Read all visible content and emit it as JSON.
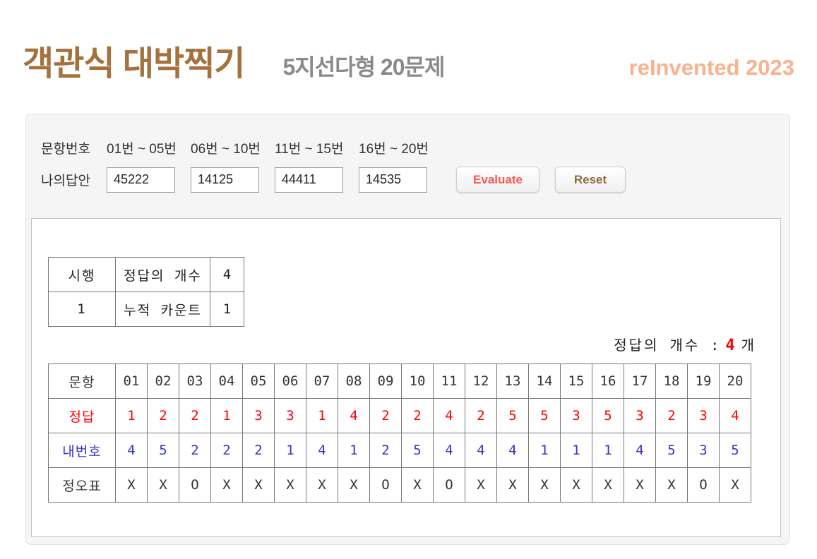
{
  "header": {
    "title": "객관식 대박찍기",
    "subtitle": "5지선다형 20문제",
    "brand": "reInvented 2023"
  },
  "form": {
    "question_row_label": "문항번호",
    "ranges": [
      "01번 ~ 05번",
      "06번 ~ 10번",
      "11번 ~ 15번",
      "16번 ~ 20번"
    ],
    "answer_row_label": "나의답안",
    "answers": [
      "45222",
      "14125",
      "44411",
      "14535"
    ],
    "evaluate_button": "Evaluate",
    "reset_button": "Reset"
  },
  "stats_table": {
    "rows": [
      [
        "시행",
        "정답의 개수",
        "4"
      ],
      [
        "1",
        "누적 카운트",
        "1"
      ]
    ]
  },
  "score_line": {
    "label": "정답의 개수 :",
    "count": "4",
    "unit": "개"
  },
  "results_table": {
    "row_headers": [
      "문항",
      "정답",
      "내번호",
      "정오표"
    ],
    "questions": [
      "01",
      "02",
      "03",
      "04",
      "05",
      "06",
      "07",
      "08",
      "09",
      "10",
      "11",
      "12",
      "13",
      "14",
      "15",
      "16",
      "17",
      "18",
      "19",
      "20"
    ],
    "correct_answers": [
      "1",
      "2",
      "2",
      "1",
      "3",
      "3",
      "1",
      "4",
      "2",
      "2",
      "4",
      "2",
      "5",
      "5",
      "3",
      "5",
      "3",
      "2",
      "3",
      "4"
    ],
    "my_answers": [
      "4",
      "5",
      "2",
      "2",
      "2",
      "1",
      "4",
      "1",
      "2",
      "5",
      "4",
      "4",
      "4",
      "1",
      "1",
      "1",
      "4",
      "5",
      "3",
      "5"
    ],
    "marks": [
      "X",
      "X",
      "O",
      "X",
      "X",
      "X",
      "X",
      "X",
      "O",
      "X",
      "O",
      "X",
      "X",
      "X",
      "X",
      "X",
      "X",
      "X",
      "O",
      "X"
    ]
  },
  "colors": {
    "title_brown": "#a5713d",
    "subtitle_gray": "#8a8a8a",
    "brand_peach": "#f9b28e",
    "evaluate_red": "#f85757",
    "reset_brown": "#8e6b3e",
    "correct_answer_red": "#ff0000",
    "my_answer_blue": "#3333cc"
  }
}
